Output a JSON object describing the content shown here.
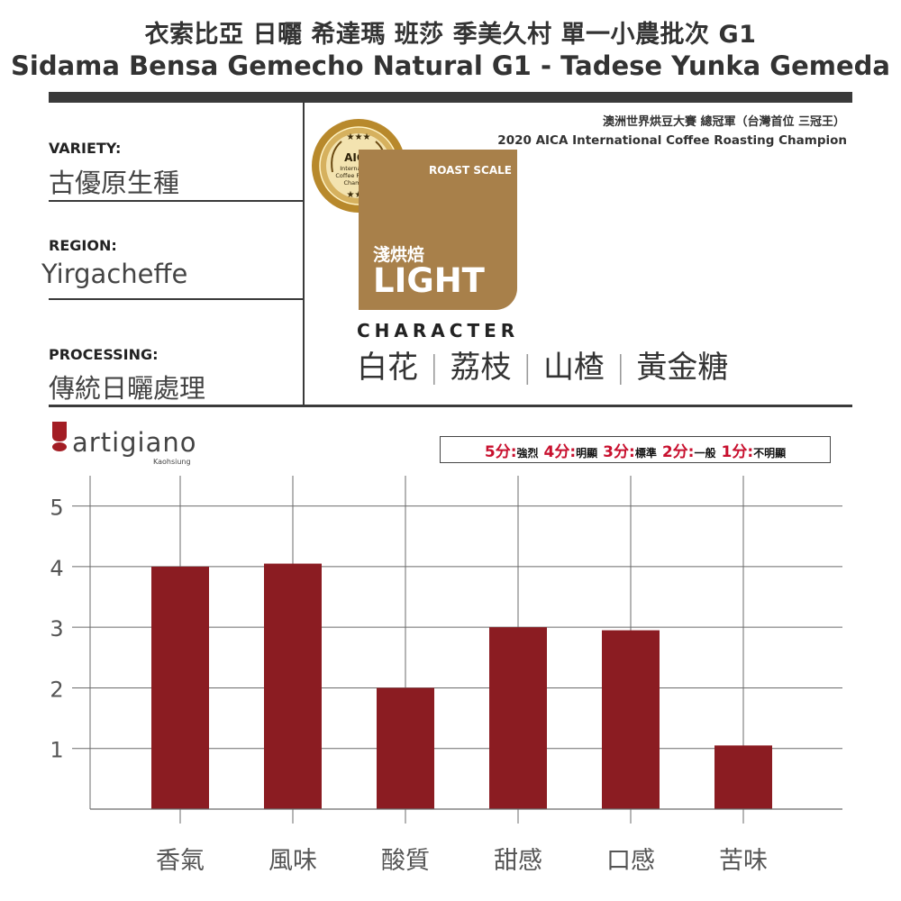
{
  "header": {
    "title_zh": "衣索比亞 日曬 希達瑪 班莎 季美久村 單一小農批次 G1",
    "title_en": "Sidama Bensa Gemecho Natural G1  - Tadese Yunka Gemeda"
  },
  "info": {
    "variety_label": "VARIETY:",
    "variety_value": "古優原生種",
    "region_label": "REGION:",
    "region_value": "Yirgacheffe",
    "processing_label": "PROCESSING:",
    "processing_value": "傳統日曬處理"
  },
  "award": {
    "line_zh": "澳洲世界烘豆大賽 總冠軍（台灣首位 三冠王）",
    "line_en": "2020 AICA International Coffee Roasting Champion",
    "badge_title": "AICA",
    "badge_line1": "International",
    "badge_line2": "Coffee Roasting",
    "badge_line3": "Champion"
  },
  "roast": {
    "scale_label": "ROAST SCALE",
    "level_zh": "淺烘焙",
    "level_en": "LIGHT"
  },
  "character": {
    "title": "CHARACTER",
    "notes": [
      "白花",
      "荔枝",
      "山楂",
      "黃金糖"
    ]
  },
  "brand": {
    "name": "artigiano",
    "city": "Kaohsiung"
  },
  "legend": {
    "items": [
      {
        "score": "5分:",
        "desc": "強烈"
      },
      {
        "score": "4分:",
        "desc": "明顯"
      },
      {
        "score": "3分:",
        "desc": "標準"
      },
      {
        "score": "2分:",
        "desc": "一般"
      },
      {
        "score": "1分:",
        "desc": "不明顯"
      }
    ]
  },
  "colors": {
    "bar": "#8b1c22",
    "roast": "#a8804a",
    "gold": "#b8892c",
    "score_red": "#c8102e",
    "grid": "#6b6b6b"
  },
  "chart_data": {
    "type": "bar",
    "categories": [
      "香氣",
      "風味",
      "酸質",
      "甜感",
      "口感",
      "苦味"
    ],
    "values": [
      4.0,
      4.05,
      2.0,
      3.0,
      2.95,
      1.05
    ],
    "ylim": [
      0,
      5.5
    ],
    "yticks": [
      1,
      2,
      3,
      4,
      5
    ],
    "grid": true
  }
}
